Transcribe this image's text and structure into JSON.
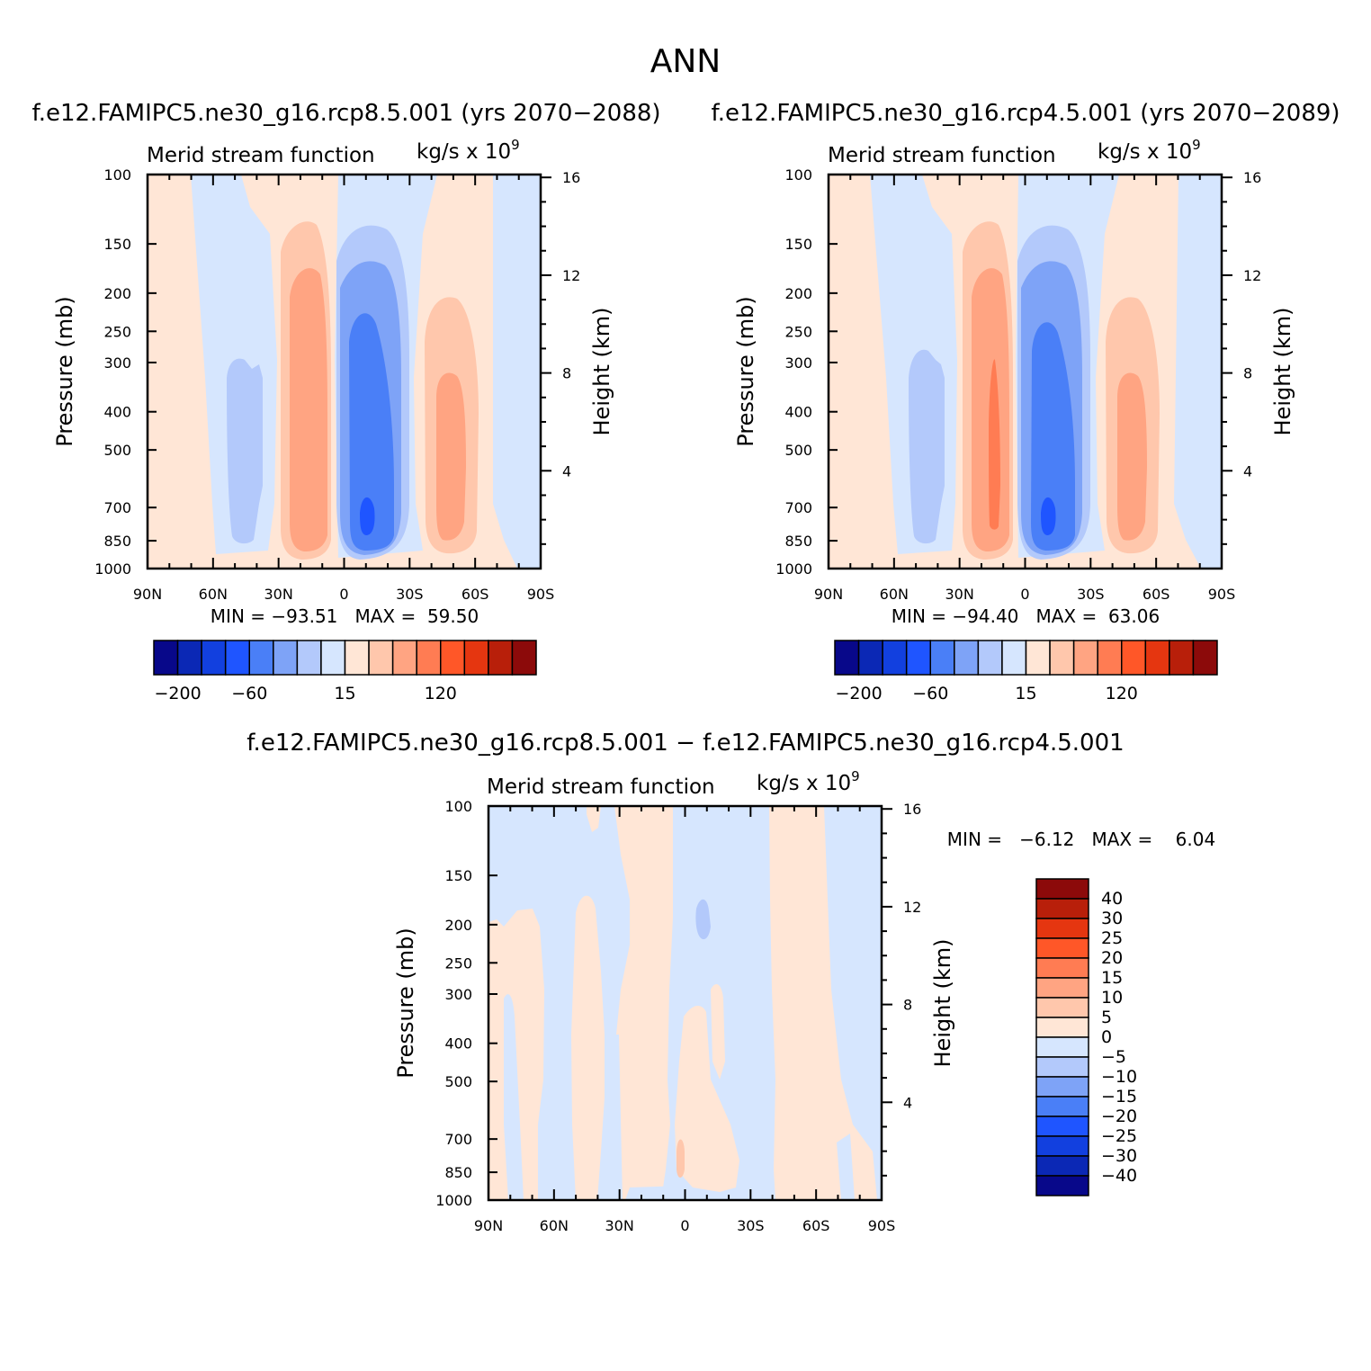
{
  "figure": {
    "title": "ANN",
    "colors": {
      "abs_levels": [
        "#08088a",
        "#0b28b5",
        "#1240df",
        "#1f55ff",
        "#4a7ff7",
        "#7ea3f7",
        "#b3c9fb",
        "#d6e6fe",
        "#ffe6d6",
        "#ffc7ac",
        "#ffa482",
        "#ff7c53",
        "#ff5728",
        "#e53610",
        "#b81f0a",
        "#8c0a0a"
      ],
      "diff_levels": [
        "#08088a",
        "#0b28b5",
        "#1240df",
        "#1f55ff",
        "#4a7ff7",
        "#7ea3f7",
        "#b3c9fb",
        "#d6e6fe",
        "#ffe6d6",
        "#ffc7ac",
        "#ffa482",
        "#ff7c53",
        "#ff5728",
        "#e53610",
        "#b81f0a",
        "#8c0a0a"
      ]
    }
  },
  "chart_data": [
    {
      "type": "heatmap",
      "panel_title": "f.e12.FAMIPC5.ne30_g16.rcp8.5.001 (yrs 2070-2088)",
      "left_label": "Merid stream function",
      "right_label": "kg/s x 10",
      "right_label_exp": "9",
      "ylabel": "Pressure (mb)",
      "ylabel_right": "Height (km)",
      "xticks": [
        "90N",
        "60N",
        "30N",
        "0",
        "30S",
        "60S",
        "90S"
      ],
      "xlim": [
        -90,
        90
      ],
      "yticks": [
        100,
        150,
        200,
        250,
        300,
        400,
        500,
        700,
        850,
        1000
      ],
      "ylim": [
        1000,
        100
      ],
      "y_scale": "log",
      "yticks_right": [
        16,
        12,
        8,
        4
      ],
      "stats": "MIN = -93.51   MAX =  59.50",
      "min": -93.51,
      "max": 59.5,
      "colorbar": {
        "orientation": "horizontal",
        "labels": [
          "-200",
          "-60",
          "15",
          "120"
        ]
      },
      "features": [
        {
          "lat": -70,
          "p": 700,
          "value": -3
        },
        {
          "lat": -49,
          "p": 500,
          "value": -20
        },
        {
          "lat": -15,
          "p": 500,
          "value": 45
        },
        {
          "lat": 8,
          "p": 700,
          "value": -93.51
        },
        {
          "lat": 45,
          "p": 500,
          "value": 40
        },
        {
          "lat": 80,
          "p": 200,
          "value": -3
        }
      ]
    },
    {
      "type": "heatmap",
      "panel_title": "f.e12.FAMIPC5.ne30_g16.rcp4.5.001 (yrs 2070-2089)",
      "left_label": "Merid stream function",
      "right_label": "kg/s x 10",
      "right_label_exp": "9",
      "ylabel": "Pressure (mb)",
      "ylabel_right": "Height (km)",
      "xticks": [
        "90N",
        "60N",
        "30N",
        "0",
        "30S",
        "60S",
        "90S"
      ],
      "xlim": [
        -90,
        90
      ],
      "yticks": [
        100,
        150,
        200,
        250,
        300,
        400,
        500,
        700,
        850,
        1000
      ],
      "ylim": [
        1000,
        100
      ],
      "y_scale": "log",
      "yticks_right": [
        16,
        12,
        8,
        4
      ],
      "stats": "MIN = -94.40   MAX =  63.06",
      "min": -94.4,
      "max": 63.06,
      "colorbar": {
        "orientation": "horizontal",
        "labels": [
          "-200",
          "-60",
          "15",
          "120"
        ]
      },
      "features": [
        {
          "lat": -70,
          "p": 700,
          "value": -3
        },
        {
          "lat": -49,
          "p": 500,
          "value": -20
        },
        {
          "lat": -14,
          "p": 600,
          "value": 63.06
        },
        {
          "lat": 8,
          "p": 700,
          "value": -94.4
        },
        {
          "lat": 45,
          "p": 500,
          "value": 40
        },
        {
          "lat": 80,
          "p": 200,
          "value": -3
        }
      ]
    },
    {
      "type": "heatmap",
      "panel_title": "f.e12.FAMIPC5.ne30_g16.rcp8.5.001 - f.e12.FAMIPC5.ne30_g16.rcp4.5.001",
      "left_label": "Merid stream function",
      "right_label": "kg/s x 10",
      "right_label_exp": "9",
      "ylabel": "Pressure (mb)",
      "ylabel_right": "Height (km)",
      "xticks": [
        "90N",
        "60N",
        "30N",
        "0",
        "30S",
        "60S",
        "90S"
      ],
      "xlim": [
        -90,
        90
      ],
      "yticks": [
        100,
        150,
        200,
        250,
        300,
        400,
        500,
        700,
        850,
        1000
      ],
      "ylim": [
        1000,
        100
      ],
      "y_scale": "log",
      "yticks_right": [
        16,
        12,
        8,
        4
      ],
      "stats": "MIN =   -6.12   MAX =    6.04",
      "min": -6.12,
      "max": 6.04,
      "colorbar": {
        "orientation": "vertical",
        "labels": [
          "40",
          "30",
          "25",
          "20",
          "15",
          "10",
          "5",
          "0",
          "-5",
          "-10",
          "-15",
          "-20",
          "-25",
          "-30",
          "-40"
        ]
      },
      "features": [
        {
          "lat": -4,
          "p": 750,
          "value": 6.04
        },
        {
          "lat": 8,
          "p": 200,
          "value": -6.12
        }
      ]
    }
  ]
}
